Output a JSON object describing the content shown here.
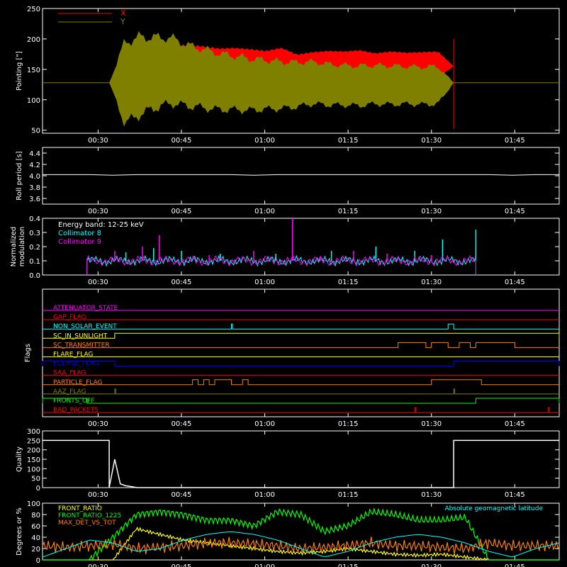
{
  "chart_data": [
    {
      "type": "line",
      "ylabel": "Pointing [\"]",
      "ylim": [
        45,
        250
      ],
      "yticks": [
        50,
        100,
        150,
        200,
        250
      ],
      "xticks": [
        "00:30",
        "00:45",
        "01:00",
        "01:15",
        "01:30",
        "01:45"
      ],
      "legend_position": "top-left",
      "series": [
        {
          "name": "X",
          "color": "#ff0000",
          "center": [
            128,
            128,
            135,
            140,
            150,
            155,
            155,
            155,
            158,
            156,
            155,
            160,
            150,
            155,
            157,
            158,
            160,
            155,
            158,
            156,
            157,
            158,
            155
          ],
          "halfwidth": [
            0,
            60,
            55,
            48,
            40,
            36,
            34,
            30,
            28,
            28,
            26,
            26,
            25,
            24,
            24,
            22,
            22,
            22,
            22,
            22,
            22,
            22,
            0
          ]
        },
        {
          "name": "Y",
          "color": "#7f7f00",
          "center": [
            128,
            128,
            140,
            145,
            148,
            140,
            135,
            130,
            128,
            125,
            125,
            124,
            125,
            128,
            125,
            124,
            123,
            125,
            124,
            124,
            123,
            124,
            128
          ],
          "halfwidth": [
            0,
            70,
            66,
            60,
            56,
            52,
            50,
            48,
            46,
            44,
            42,
            40,
            38,
            36,
            35,
            34,
            34,
            33,
            33,
            32,
            32,
            32,
            0
          ]
        }
      ],
      "baseline": 128,
      "active_range": [
        "00:32",
        "01:34"
      ]
    },
    {
      "type": "line",
      "ylabel": "Roll period [s]",
      "ylim": [
        3.5,
        4.5
      ],
      "yticks": [
        3.6,
        3.8,
        4.0,
        4.2,
        4.4
      ],
      "xticks": [
        "00:30",
        "00:45",
        "01:00",
        "01:15",
        "01:30",
        "01:45"
      ],
      "series": [
        {
          "name": "",
          "color": "#ffffff",
          "values": [
            4.02,
            4.02,
            4.02,
            4.01,
            4.02,
            4.02,
            4.02,
            4.02,
            4.02,
            4.01,
            4.02,
            4.02,
            4.02,
            4.02,
            4.02,
            4.02,
            4.02,
            4.02,
            4.02,
            4.02,
            4.01,
            4.02,
            4.02
          ]
        }
      ]
    },
    {
      "type": "line",
      "ylabel": "Normalized modulation",
      "ylim": [
        0,
        0.4
      ],
      "yticks": [
        0.0,
        0.1,
        0.2,
        0.3,
        0.4
      ],
      "xticks": [
        "00:30",
        "00:45",
        "01:00",
        "01:15",
        "01:30",
        "01:45"
      ],
      "annotation": "Energy band: 12-25 keV",
      "series": [
        {
          "name": "Collimator 8",
          "color": "#00ffff",
          "level": 0.1,
          "spikes": [
            [
              "00:35",
              0.16
            ],
            [
              "00:40",
              0.19
            ],
            [
              "00:45",
              0.17
            ],
            [
              "00:52",
              0.15
            ],
            [
              "01:02",
              0.15
            ],
            [
              "01:05",
              0.2
            ],
            [
              "01:12",
              0.17
            ],
            [
              "01:20",
              0.2
            ],
            [
              "01:27",
              0.17
            ],
            [
              "01:32",
              0.25
            ],
            [
              "01:38",
              0.32
            ]
          ]
        },
        {
          "name": "Collimator 9",
          "color": "#ff00ff",
          "level": 0.1,
          "spikes": [
            [
              "00:33",
              0.17
            ],
            [
              "00:38",
              0.2
            ],
            [
              "00:41",
              0.28
            ],
            [
              "00:50",
              0.14
            ],
            [
              "00:58",
              0.17
            ],
            [
              "01:05",
              0.4
            ],
            [
              "01:10",
              0.13
            ],
            [
              "01:16",
              0.17
            ],
            [
              "01:22",
              0.15
            ],
            [
              "01:30",
              0.14
            ]
          ]
        }
      ],
      "active_range": [
        "00:28",
        "01:38"
      ]
    },
    {
      "type": "line",
      "ylabel": "Flags",
      "xticks": [
        "00:30",
        "00:45",
        "01:00",
        "01:15",
        "01:30",
        "01:45"
      ],
      "flags": [
        {
          "name": "ATTENUATOR_STATE",
          "color": "#ff00ff",
          "segments": []
        },
        {
          "name": "GAP_FLAG",
          "color": "#ff0000",
          "segments": []
        },
        {
          "name": "NON_SOLAR_EVENT",
          "color": "#00ffff",
          "segments": [
            [
              "00:54",
              "00:54"
            ],
            [
              "01:33",
              "01:34"
            ]
          ]
        },
        {
          "name": "SC_IN_SUNLIGHT",
          "color": "#ffff00",
          "segments": [
            [
              "00:33",
              "01:53"
            ]
          ]
        },
        {
          "name": "SC_TRANSMITTER",
          "color": "#ff8000",
          "segments": [
            [
              "01:24",
              "01:29"
            ],
            [
              "01:30",
              "01:33"
            ],
            [
              "01:35",
              "01:37"
            ],
            [
              "01:38",
              "01:45"
            ]
          ]
        },
        {
          "name": "FLARE_FLAG",
          "color": "#ffff00",
          "segments": []
        },
        {
          "name": "ECLIPSE_FLAG",
          "color": "#0000ff",
          "segments": [
            [
              "00:20",
              "00:33"
            ],
            [
              "01:34",
              "01:53"
            ]
          ]
        },
        {
          "name": "SAA_FLAG",
          "color": "#ff0000",
          "segments": []
        },
        {
          "name": "PARTICLE_FLAG",
          "color": "#ff8000",
          "segments": [
            [
              "00:47",
              "00:48"
            ],
            [
              "00:49",
              "00:50"
            ],
            [
              "00:51",
              "00:54"
            ],
            [
              "00:56",
              "00:57"
            ],
            [
              "01:30",
              "01:39"
            ]
          ]
        },
        {
          "name": "AAZ_FLAG",
          "color": "#7f7f00",
          "segments": [
            [
              "00:33",
              "00:33"
            ],
            [
              "01:34",
              "01:34"
            ]
          ]
        },
        {
          "name": "FRONTS_OFF",
          "color": "#00ff00",
          "segments": [
            [
              "00:20",
              "00:28"
            ],
            [
              "01:38",
              "01:53"
            ]
          ]
        },
        {
          "name": "BAD_PACKETS",
          "color": "#ff0000",
          "segments": [
            [
              "01:27",
              "01:27"
            ],
            [
              "01:51",
              "01:51"
            ]
          ]
        }
      ]
    },
    {
      "type": "line",
      "ylabel": "Quality",
      "ylim": [
        0,
        300
      ],
      "yticks": [
        0,
        50,
        100,
        150,
        200,
        250,
        300
      ],
      "xticks": [
        "00:30",
        "00:45",
        "01:00",
        "01:15",
        "01:30",
        "01:45"
      ],
      "series": [
        {
          "name": "",
          "color": "#ffffff",
          "points": [
            [
              "00:20",
              250
            ],
            [
              "00:32",
              250
            ],
            [
              "00:32",
              0
            ],
            [
              "00:33",
              150
            ],
            [
              "00:34",
              20
            ],
            [
              "00:35",
              10
            ],
            [
              "00:36",
              5
            ],
            [
              "00:37",
              0
            ],
            [
              "01:34",
              0
            ],
            [
              "01:34",
              250
            ],
            [
              "01:53",
              250
            ]
          ]
        }
      ]
    },
    {
      "type": "line",
      "ylabel": "Degrees or %",
      "ylim": [
        0,
        100
      ],
      "yticks": [
        0,
        20,
        40,
        60,
        80,
        100
      ],
      "xticks": [
        "00:30",
        "00:45",
        "01:00",
        "01:15",
        "01:30",
        "01:45"
      ],
      "series": [
        {
          "name": "FRONT_RATIO",
          "color": "#ffff00",
          "values": [
            0,
            0,
            0,
            0,
            55,
            45,
            35,
            30,
            25,
            20,
            15,
            12,
            15,
            20,
            15,
            10,
            8,
            10,
            5,
            0,
            0,
            0,
            0
          ]
        },
        {
          "name": "FRONT_RATIO_1225",
          "color": "#00ff00",
          "values": [
            0,
            0,
            0,
            40,
            80,
            85,
            80,
            70,
            70,
            60,
            85,
            80,
            50,
            60,
            85,
            80,
            70,
            70,
            75,
            0,
            0,
            0,
            0
          ]
        },
        {
          "name": "MAX_DET_VS_TOT",
          "color": "#ff8000",
          "values": [
            25,
            22,
            25,
            28,
            20,
            22,
            25,
            30,
            30,
            28,
            25,
            20,
            22,
            25,
            30,
            25,
            25,
            22,
            20,
            30,
            25,
            25,
            25
          ]
        },
        {
          "name": "Absolute geomagnetic latitude",
          "color": "#00ffff",
          "values": [
            5,
            20,
            35,
            30,
            15,
            20,
            35,
            45,
            50,
            45,
            35,
            20,
            5,
            15,
            30,
            40,
            45,
            40,
            30,
            15,
            5,
            20,
            30
          ]
        }
      ]
    }
  ]
}
